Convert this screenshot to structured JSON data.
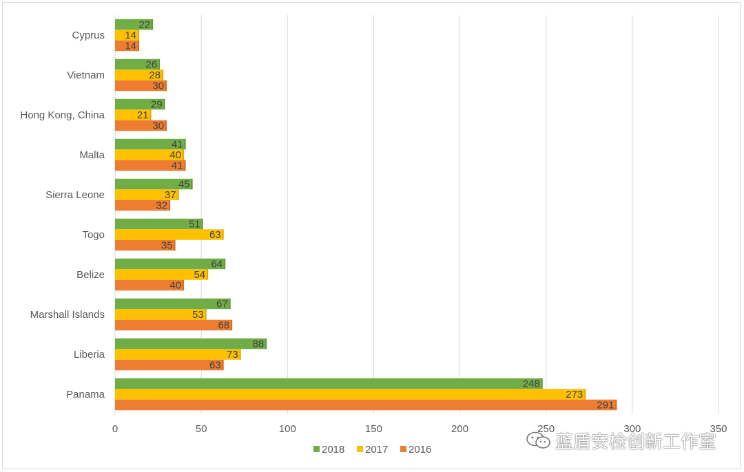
{
  "chart_data": {
    "type": "bar",
    "orientation": "horizontal",
    "categories": [
      "Cyprus",
      "Vietnam",
      "Hong Kong, China",
      "Malta",
      "Sierra Leone",
      "Togo",
      "Belize",
      "Marshall Islands",
      "Liberia",
      "Panama"
    ],
    "series": [
      {
        "name": "2018",
        "color": "#70ad47",
        "values": [
          22,
          26,
          29,
          41,
          45,
          51,
          64,
          67,
          88,
          248
        ]
      },
      {
        "name": "2017",
        "color": "#ffc000",
        "values": [
          14,
          28,
          21,
          40,
          37,
          63,
          54,
          53,
          73,
          273
        ]
      },
      {
        "name": "2016",
        "color": "#ed7d31",
        "values": [
          14,
          30,
          30,
          41,
          32,
          35,
          40,
          68,
          63,
          291
        ]
      }
    ],
    "xlim": [
      0,
      350
    ],
    "xticks": [
      0,
      50,
      100,
      150,
      200,
      250,
      300,
      350
    ],
    "grid": "vertical",
    "legend_position": "bottom",
    "data_labels": true
  },
  "watermark": {
    "text": "蓝盾安检创新工作室",
    "icon": "wechat-icon"
  },
  "colors": {
    "grid": "#d9d9d9",
    "axis_text": "#595959",
    "label_text": "#404040"
  }
}
